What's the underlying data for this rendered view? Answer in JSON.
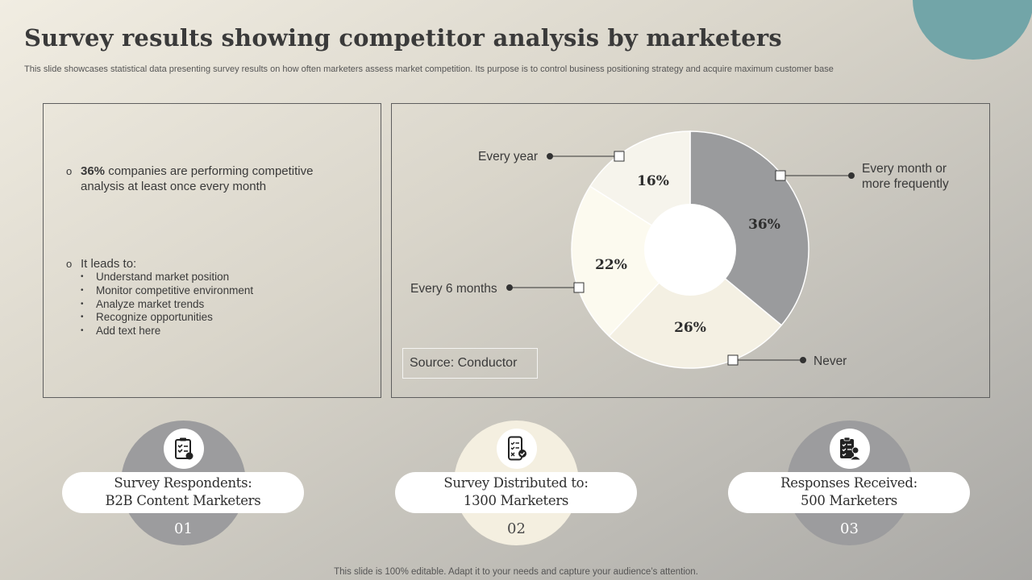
{
  "slide": {
    "title": "Survey results showing competitor analysis by marketers",
    "subtitle": "This slide showcases statistical data presenting survey results on how often marketers assess market competition. Its purpose is to control business positioning strategy and acquire maximum customer base",
    "footer": "This slide is 100% editable. Adapt it to your needs and capture your audience’s attention.",
    "accent_color": "#72a5a8"
  },
  "insights": {
    "highlight_value": "36%",
    "highlight_text": " companies are performing competitive analysis at least once every month",
    "leads_to_label": "It leads to:",
    "leads_to_items": [
      "Understand market position",
      "Monitor competitive environment",
      "Analyze market trends",
      "Recognize opportunities",
      "Add text here"
    ]
  },
  "chart_data": {
    "type": "pie",
    "donut": true,
    "legend": "callouts",
    "slices": [
      {
        "label": "Every month or more frequently",
        "value": 36,
        "display": "36%",
        "color": "#9a9b9d"
      },
      {
        "label": "Never",
        "value": 26,
        "display": "26%",
        "color": "#f4f0e3"
      },
      {
        "label": "Every 6 months",
        "value": 22,
        "display": "22%",
        "color": "#fcfaef"
      },
      {
        "label": "Every year",
        "value": 16,
        "display": "16%",
        "color": "#f6f4ec"
      }
    ],
    "source": "Source: Conductor"
  },
  "stats": [
    {
      "icon": "clipboard-checklist-icon",
      "line1": "Survey Respondents:",
      "line2": "B2B Content Marketers",
      "number": "01",
      "color": "#9c9c9e"
    },
    {
      "icon": "phone-checklist-icon",
      "line1": "Survey Distributed to:",
      "line2": "1300 Marketers",
      "number": "02",
      "color": "#f4efe0"
    },
    {
      "icon": "checklist-person-icon",
      "line1": "Responses Received:",
      "line2": "500 Marketers",
      "number": "03",
      "color": "#9c9c9e"
    }
  ]
}
